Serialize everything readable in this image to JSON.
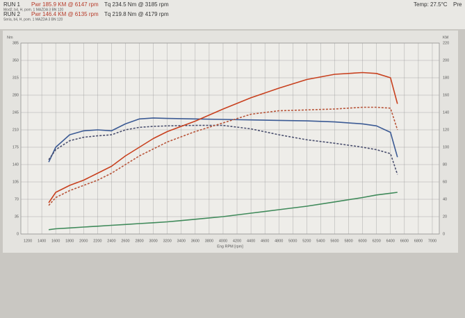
{
  "header": {
    "run1": {
      "label": "RUN 1",
      "power": "Pwr 185.9 KM @ 6147 rpm",
      "torque": "Tq 234.5 Nm @ 3185 rpm",
      "info": "Mod2, b4, H, pom. 1 MAZDA 3 BN 120"
    },
    "run2": {
      "label": "RUN 2",
      "power": "Pwr 146.4 KM @ 6135 rpm",
      "torque": "Tq 219.8 Nm @ 4179 rpm",
      "info": "Seria, b4, H, pom. 1 MAZDA 3 BN 120"
    },
    "temp": "Temp: 27.5°C",
    "extra": "Pre"
  },
  "chart_data": {
    "type": "line",
    "x": [
      1500,
      1600,
      1800,
      2000,
      2200,
      2400,
      2600,
      2800,
      3000,
      3200,
      3600,
      4000,
      4400,
      4800,
      5200,
      5600,
      6000,
      6200,
      6400,
      6500
    ],
    "xlim": [
      1100,
      7100
    ],
    "xticks": [
      1200,
      1400,
      1600,
      1800,
      2000,
      2200,
      2400,
      2600,
      2800,
      3000,
      3200,
      3400,
      3600,
      3800,
      4000,
      4200,
      4400,
      4600,
      4800,
      5000,
      5200,
      5400,
      5600,
      5800,
      6000,
      6200,
      6400,
      6600,
      6800,
      7000
    ],
    "ylim": [
      0,
      385
    ],
    "yticks": [
      0,
      35,
      70,
      105,
      140,
      175,
      210,
      245,
      280,
      315,
      350,
      385
    ],
    "y2lim": [
      0,
      220
    ],
    "y2ticks": [
      0,
      20,
      40,
      60,
      80,
      100,
      120,
      140,
      160,
      180,
      200,
      220
    ],
    "xlabel": "Eng RPM [rpm]",
    "ylabel": "Nm",
    "y2label": "KM",
    "grid": true,
    "series": [
      {
        "color": "#3b5a94",
        "dashed": false,
        "values": [
          145,
          175,
          200,
          208,
          210,
          208,
          222,
          232,
          234,
          233,
          232,
          231,
          230,
          229,
          228,
          226,
          222,
          218,
          205,
          155
        ]
      },
      {
        "color": "#4a4f6e",
        "dashed": true,
        "values": [
          150,
          170,
          188,
          195,
          198,
          200,
          210,
          215,
          217,
          218,
          219,
          219,
          212,
          200,
          190,
          183,
          175,
          170,
          162,
          120
        ]
      },
      {
        "color": "#c8401e",
        "dashed": false,
        "axis": "y2",
        "values": [
          36,
          48,
          56,
          62,
          70,
          78,
          90,
          100,
          110,
          118,
          130,
          144,
          157,
          168,
          178,
          184,
          186,
          185,
          180,
          150
        ]
      },
      {
        "color": "#b8553a",
        "dashed": true,
        "axis": "y2",
        "values": [
          33,
          42,
          50,
          56,
          62,
          70,
          80,
          90,
          98,
          106,
          118,
          128,
          138,
          142,
          143,
          144,
          146,
          146,
          145,
          120
        ]
      },
      {
        "color": "#3f8a5a",
        "dashed": false,
        "axis": "y2",
        "values": [
          5,
          6,
          7,
          8,
          9,
          10,
          11,
          12,
          13,
          14,
          17,
          20,
          24,
          28,
          32,
          37,
          42,
          45,
          47,
          48
        ]
      }
    ]
  }
}
